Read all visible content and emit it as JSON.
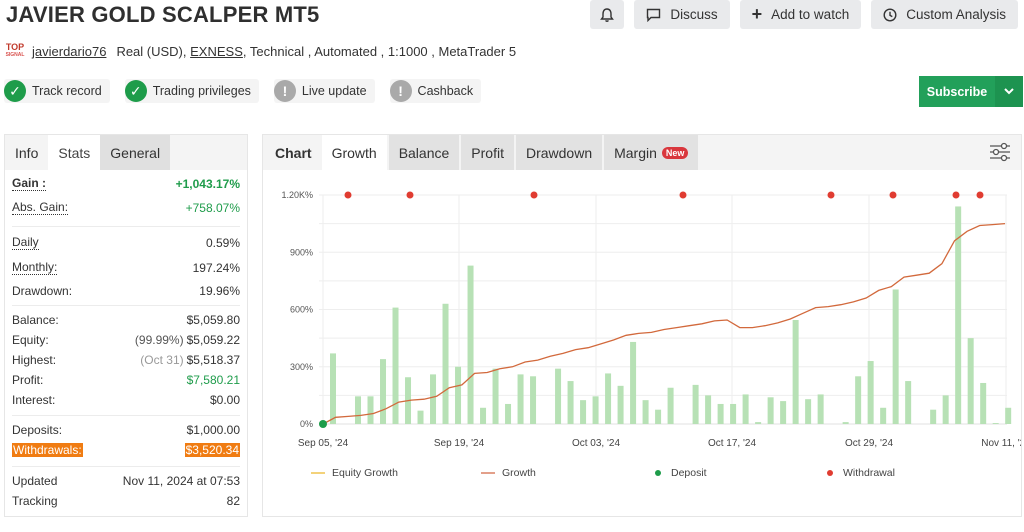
{
  "header": {
    "title": "JAVIER GOLD SCALPER MT5",
    "logo_text": "TOP",
    "logo_sub": "SIGNAL",
    "username": "javierdario76",
    "account_type": "Real (USD),",
    "broker": "EXNESS",
    "details": ", Technical , Automated , 1:1000 , MetaTrader 5"
  },
  "top_buttons": {
    "notify_icon": "bell-icon",
    "discuss": "Discuss",
    "add_to_watch": "Add to watch",
    "custom_analysis": "Custom Analysis"
  },
  "badges": [
    {
      "label": "Track record",
      "status": "verified",
      "icon": "check-circle-icon"
    },
    {
      "label": "Trading privileges",
      "status": "verified",
      "icon": "check-circle-icon"
    },
    {
      "label": "Live update",
      "status": "warning",
      "icon": "exclamation-circle-icon"
    },
    {
      "label": "Cashback",
      "status": "warning",
      "icon": "exclamation-circle-icon"
    }
  ],
  "subscribe": {
    "label": "Subscribe",
    "dropdown_icon": "chevron-down-icon"
  },
  "left_panel": {
    "tabs": [
      "Info",
      "Stats",
      "General"
    ],
    "active_tab": "Stats",
    "stats": {
      "gain_label": "Gain :",
      "gain": "+1,043.17%",
      "abs_gain_label": "Abs. Gain:",
      "abs_gain": "+758.07%",
      "daily_label": "Daily",
      "daily": "0.59%",
      "monthly_label": "Monthly:",
      "monthly": "197.24%",
      "drawdown_label": "Drawdown:",
      "drawdown": "19.96%",
      "balance_label": "Balance:",
      "balance": "$5,059.80",
      "equity_label": "Equity:",
      "equity_pct": "(99.99%)",
      "equity": "$5,059.22",
      "highest_label": "Highest:",
      "highest_date": "(Oct 31)",
      "highest": "$5,518.37",
      "profit_label": "Profit:",
      "profit": "$7,580.21",
      "interest_label": "Interest:",
      "interest": "$0.00",
      "deposits_label": "Deposits:",
      "deposits": "$1,000.00",
      "withdrawals_label": "Withdrawals:",
      "withdrawals": "$3,520.34",
      "updated_label": "Updated",
      "updated": "Nov 11, 2024 at 07:53",
      "tracking_label": "Tracking",
      "tracking": "82"
    }
  },
  "chart_panel": {
    "tabs": [
      "Chart",
      "Growth",
      "Balance",
      "Profit",
      "Drawdown",
      "Margin"
    ],
    "active_tab": "Growth",
    "new_badge": "New",
    "settings_icon": "sliders-icon"
  },
  "colors": {
    "accent_green": "#22a05a",
    "gain_green": "#1f9c4b",
    "growth_line": "#d2693c",
    "bar_green": "#b7e1b5",
    "deposit": "#1e9c4a",
    "withdrawal": "#e03c31",
    "withdrawal_highlight": "#f07c12",
    "new_badge": "#d9373d"
  },
  "chart_data": {
    "type": "bar+line",
    "title": "Growth",
    "ylabel": "",
    "xlabel": "",
    "ylim": [
      0,
      1200
    ],
    "y_ticks": [
      "0%",
      "300%",
      "600%",
      "900%",
      "1.20K%"
    ],
    "x_ticks": [
      "Sep 05, '24",
      "Sep 19, '24",
      "Oct 03, '24",
      "Oct 17, '24",
      "Oct 29, '24",
      "Nov 11, '24"
    ],
    "grid": true,
    "legend": [
      "Equity Growth",
      "Growth",
      "Deposit",
      "Withdrawal"
    ],
    "legend_position": "bottom",
    "series": [
      {
        "name": "Daily Growth (bars)",
        "type": "bar",
        "values": [
          370,
          0,
          145,
          145,
          340,
          610,
          245,
          70,
          260,
          630,
          300,
          830,
          85,
          290,
          105,
          260,
          250,
          0,
          290,
          225,
          125,
          145,
          265,
          200,
          430,
          125,
          75,
          190,
          0,
          205,
          150,
          105,
          105,
          155,
          10,
          140,
          120,
          545,
          130,
          155,
          0,
          10,
          250,
          330,
          85,
          705,
          225,
          0,
          75,
          150,
          1140,
          450,
          215,
          5,
          85
        ]
      },
      {
        "name": "Growth",
        "type": "line",
        "values": [
          0,
          35,
          40,
          45,
          55,
          80,
          115,
          125,
          130,
          145,
          190,
          205,
          265,
          270,
          290,
          300,
          325,
          335,
          355,
          370,
          390,
          400,
          420,
          440,
          465,
          475,
          480,
          495,
          505,
          515,
          525,
          540,
          545,
          505,
          505,
          515,
          530,
          550,
          580,
          610,
          615,
          625,
          640,
          660,
          700,
          720,
          770,
          780,
          790,
          840,
          960,
          1010,
          1040,
          1045,
          1050
        ]
      },
      {
        "name": "Deposit",
        "type": "marker",
        "points": [
          {
            "x": "Sep 05, '24",
            "y": 0
          }
        ]
      },
      {
        "name": "Withdrawal",
        "type": "marker",
        "count": 8
      }
    ]
  }
}
